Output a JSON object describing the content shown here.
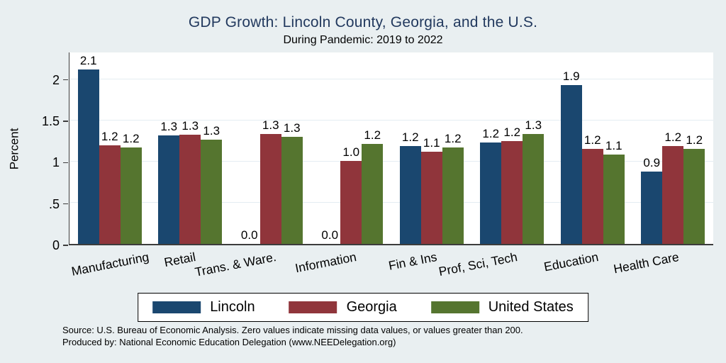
{
  "chart_data": {
    "type": "bar",
    "title": "GDP Growth: Lincoln County, Georgia, and the U.S.",
    "subtitle": "During Pandemic: 2019 to 2022",
    "ylabel": "Percent",
    "xlabel": "",
    "categories": [
      "Manufacturing",
      "Retail",
      "Trans. & Ware.",
      "Information",
      "Fin & Ins",
      "Prof, Sci, Tech",
      "Education",
      "Health Care"
    ],
    "series": [
      {
        "name": "Lincoln",
        "color": "#1a476f",
        "values": [
          2.12,
          1.32,
          0,
          0,
          1.19,
          1.23,
          1.93,
          0.88
        ],
        "labels": [
          "2.1",
          "1.3",
          "0.0",
          "0.0",
          "1.2",
          "1.2",
          "1.9",
          "0.9"
        ]
      },
      {
        "name": "Georgia",
        "color": "#90353b",
        "values": [
          1.2,
          1.33,
          1.34,
          1.01,
          1.12,
          1.25,
          1.16,
          1.19
        ],
        "labels": [
          "1.2",
          "1.3",
          "1.3",
          "1.0",
          "1.1",
          "1.2",
          "1.2",
          "1.2"
        ]
      },
      {
        "name": "United States",
        "color": "#55752f",
        "values": [
          1.17,
          1.27,
          1.3,
          1.22,
          1.17,
          1.34,
          1.09,
          1.16
        ],
        "labels": [
          "1.2",
          "1.3",
          "1.3",
          "1.2",
          "1.2",
          "1.3",
          "1.1",
          "1.2"
        ]
      }
    ],
    "ylim": [
      0,
      2.33
    ],
    "yticks": {
      "values": [
        0,
        0.5,
        1,
        1.5,
        2
      ],
      "labels": [
        "0",
        ".5",
        "1",
        "1.5",
        "2"
      ]
    },
    "grid": true,
    "legend_position": "bottom-boxed",
    "plot_background": "#ffffff",
    "page_background": "#e9eff1",
    "gridline_color": "#e4edf2",
    "title_color": "#22395e"
  },
  "notes": {
    "line1": "Source: U.S. Bureau of Economic Analysis. Zero values indicate missing data values, or values greater than 200.",
    "line2": "Produced by: National Economic Education Delegation (www.NEEDelegation.org)"
  }
}
